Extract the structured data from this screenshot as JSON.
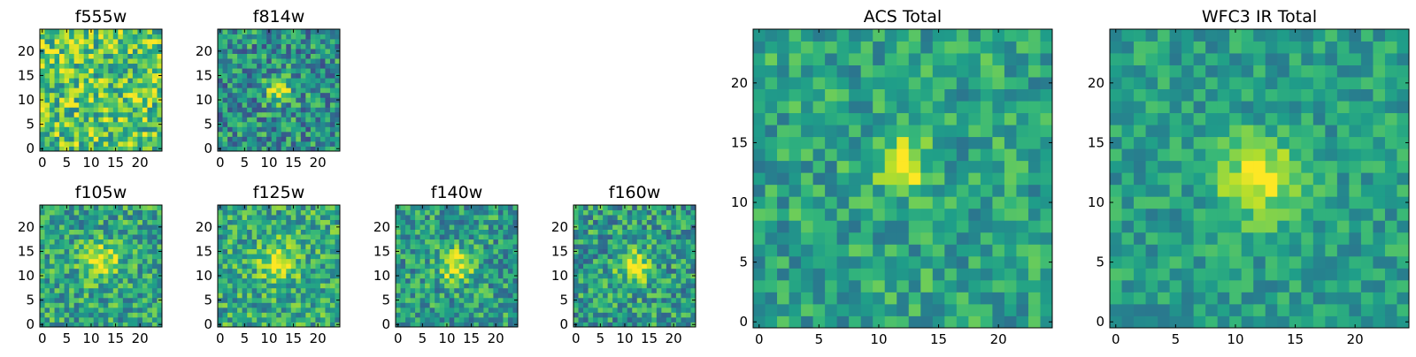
{
  "chart_data": [
    {
      "type": "heatmap",
      "title": "f555w",
      "xticks": [
        "0",
        "5",
        "10",
        "15",
        "20"
      ],
      "yticks": [
        "0",
        "5",
        "10",
        "15",
        "20"
      ],
      "xlim": [
        -0.5,
        24.5
      ],
      "ylim": [
        -0.5,
        24.5
      ],
      "colormap": "viridis",
      "blob": {
        "cx": 12,
        "cy": 11,
        "sigma": 2.5,
        "amp": 0.0
      },
      "noise": 0.3,
      "base": 0.72,
      "seed": 11
    },
    {
      "type": "heatmap",
      "title": "f814w",
      "xticks": [
        "0",
        "5",
        "10",
        "15",
        "20"
      ],
      "yticks": [
        "0",
        "5",
        "10",
        "15",
        "20"
      ],
      "xlim": [
        -0.5,
        24.5
      ],
      "ylim": [
        -0.5,
        24.5
      ],
      "colormap": "viridis",
      "blob": {
        "cx": 12,
        "cy": 12,
        "sigma": 1.8,
        "amp": 0.5
      },
      "noise": 0.28,
      "base": 0.5,
      "seed": 23
    },
    {
      "type": "heatmap",
      "title": "f105w",
      "xticks": [
        "0",
        "5",
        "10",
        "15",
        "20"
      ],
      "yticks": [
        "0",
        "5",
        "10",
        "15",
        "20"
      ],
      "xlim": [
        -0.5,
        24.5
      ],
      "ylim": [
        -0.5,
        24.5
      ],
      "colormap": "viridis",
      "blob": {
        "cx": 12,
        "cy": 13,
        "sigma": 2.6,
        "amp": 0.4
      },
      "noise": 0.25,
      "base": 0.58,
      "seed": 37
    },
    {
      "type": "heatmap",
      "title": "f125w",
      "xticks": [
        "0",
        "5",
        "10",
        "15",
        "20"
      ],
      "yticks": [
        "0",
        "5",
        "10",
        "15",
        "20"
      ],
      "xlim": [
        -0.5,
        24.5
      ],
      "ylim": [
        -0.5,
        24.5
      ],
      "colormap": "viridis",
      "blob": {
        "cx": 12,
        "cy": 13,
        "sigma": 2.6,
        "amp": 0.4
      },
      "noise": 0.25,
      "base": 0.6,
      "seed": 41
    },
    {
      "type": "heatmap",
      "title": "f140w",
      "xticks": [
        "0",
        "5",
        "10",
        "15",
        "20"
      ],
      "yticks": [
        "0",
        "5",
        "10",
        "15",
        "20"
      ],
      "xlim": [
        -0.5,
        24.5
      ],
      "ylim": [
        -0.5,
        24.5
      ],
      "colormap": "viridis",
      "blob": {
        "cx": 12,
        "cy": 12,
        "sigma": 2.3,
        "amp": 0.45
      },
      "noise": 0.25,
      "base": 0.55,
      "seed": 53
    },
    {
      "type": "heatmap",
      "title": "f160w",
      "xticks": [
        "0",
        "5",
        "10",
        "15",
        "20"
      ],
      "yticks": [
        "0",
        "5",
        "10",
        "15",
        "20"
      ],
      "xlim": [
        -0.5,
        24.5
      ],
      "ylim": [
        -0.5,
        24.5
      ],
      "colormap": "viridis",
      "blob": {
        "cx": 12,
        "cy": 12,
        "sigma": 2.3,
        "amp": 0.45
      },
      "noise": 0.26,
      "base": 0.55,
      "seed": 67
    },
    {
      "type": "heatmap",
      "title": "ACS Total",
      "xticks": [
        "0",
        "5",
        "10",
        "15",
        "20"
      ],
      "yticks": [
        "0",
        "5",
        "10",
        "15",
        "20"
      ],
      "xlim": [
        -0.5,
        24.5
      ],
      "ylim": [
        -0.5,
        24.5
      ],
      "colormap": "viridis",
      "blob": {
        "cx": 12,
        "cy": 13,
        "sigma": 1.5,
        "amp": 0.45
      },
      "noise": 0.2,
      "base": 0.58,
      "seed": 79
    },
    {
      "type": "heatmap",
      "title": "WFC3 IR Total",
      "xticks": [
        "0",
        "5",
        "10",
        "15",
        "20"
      ],
      "yticks": [
        "0",
        "5",
        "10",
        "15",
        "20"
      ],
      "xlim": [
        -0.5,
        24.5
      ],
      "ylim": [
        -0.5,
        24.5
      ],
      "colormap": "viridis",
      "blob": {
        "cx": 12,
        "cy": 12,
        "sigma": 2.3,
        "amp": 0.45
      },
      "noise": 0.16,
      "base": 0.56,
      "seed": 97
    }
  ]
}
